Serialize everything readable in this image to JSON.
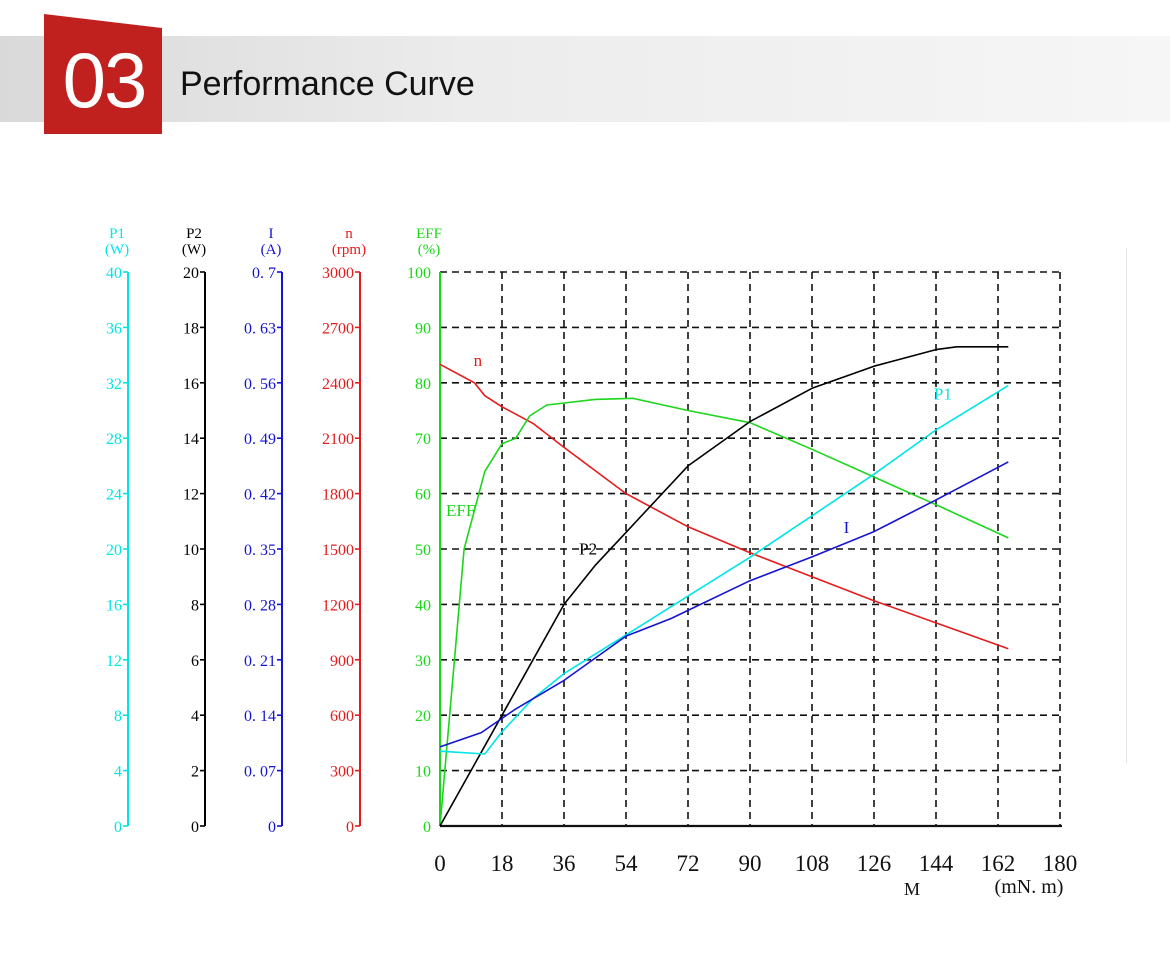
{
  "header": {
    "number": "03",
    "title": "Performance Curve",
    "accent_color": "#c0201e"
  },
  "chart_data": {
    "type": "line",
    "x": {
      "label": "M",
      "unit": "(mN. m)",
      "ticks": [
        "0",
        "18",
        "36",
        "54",
        "72",
        "90",
        "108",
        "126",
        "144",
        "162",
        "180"
      ],
      "range": [
        0,
        180
      ]
    },
    "y_axes": [
      {
        "id": "P1",
        "label": "P1",
        "unit": "(W)",
        "color": "#00e5e5",
        "range": [
          0,
          40
        ],
        "ticks": [
          "0",
          "4",
          "8",
          "12",
          "16",
          "20",
          "24",
          "28",
          "32",
          "36",
          "40"
        ]
      },
      {
        "id": "P2",
        "label": "P2",
        "unit": "(W)",
        "color": "#000000",
        "range": [
          0,
          20
        ],
        "ticks": [
          "0",
          "2",
          "4",
          "6",
          "8",
          "10",
          "12",
          "14",
          "16",
          "18",
          "20"
        ]
      },
      {
        "id": "I",
        "label": "I",
        "unit": "(A)",
        "color": "#1414d2",
        "range": [
          0,
          0.7
        ],
        "ticks": [
          "0",
          "0. 07",
          "0. 14",
          "0. 21",
          "0. 28",
          "0. 35",
          "0. 42",
          "0. 49",
          "0. 56",
          "0. 63",
          "0. 7"
        ]
      },
      {
        "id": "n",
        "label": "n",
        "unit": "(rpm)",
        "color": "#e51c1c",
        "range": [
          0,
          3000
        ],
        "ticks": [
          "0",
          "300",
          "600",
          "900",
          "1200",
          "1500",
          "1800",
          "2100",
          "2400",
          "2700",
          "3000"
        ]
      },
      {
        "id": "EFF",
        "label": "EFF",
        "unit": "(%)",
        "color": "#1cd61c",
        "range": [
          0,
          100
        ],
        "ticks": [
          "0",
          "10",
          "20",
          "30",
          "40",
          "50",
          "60",
          "70",
          "80",
          "90",
          "100"
        ]
      }
    ],
    "grid": true,
    "series": [
      {
        "name": "n",
        "axis": "n",
        "color": "#e51c1c",
        "label_at": [
          11,
          2490
        ],
        "points": [
          [
            0,
            2500
          ],
          [
            10,
            2400
          ],
          [
            13,
            2330
          ],
          [
            18,
            2270
          ],
          [
            27,
            2180
          ],
          [
            36,
            2050
          ],
          [
            54,
            1800
          ],
          [
            72,
            1620
          ],
          [
            90,
            1480
          ],
          [
            108,
            1350
          ],
          [
            126,
            1220
          ],
          [
            144,
            1100
          ],
          [
            165,
            960
          ]
        ]
      },
      {
        "name": "EFF",
        "axis": "EFF",
        "color": "#1cd61c",
        "label_at": [
          6,
          56
        ],
        "points": [
          [
            0,
            0
          ],
          [
            7,
            50
          ],
          [
            13,
            64
          ],
          [
            18,
            69
          ],
          [
            22,
            70
          ],
          [
            26,
            74
          ],
          [
            31,
            76
          ],
          [
            45,
            77
          ],
          [
            56,
            77.2
          ],
          [
            72,
            75
          ],
          [
            90,
            72.8
          ],
          [
            108,
            68
          ],
          [
            126,
            63
          ],
          [
            144,
            58
          ],
          [
            165,
            52
          ]
        ]
      },
      {
        "name": "P2",
        "axis": "P2",
        "color": "#000000",
        "label_at": [
          43,
          9.8
        ],
        "points": [
          [
            0,
            0
          ],
          [
            18,
            4
          ],
          [
            27,
            6
          ],
          [
            36,
            8
          ],
          [
            45,
            9.4
          ],
          [
            54,
            10.6
          ],
          [
            72,
            13
          ],
          [
            90,
            14.6
          ],
          [
            108,
            15.8
          ],
          [
            126,
            16.6
          ],
          [
            144,
            17.2
          ],
          [
            150,
            17.3
          ],
          [
            165,
            17.3
          ]
        ]
      },
      {
        "name": "P1",
        "axis": "P1",
        "color": "#00e5e5",
        "label_at": [
          146,
          30.8
        ],
        "points": [
          [
            0,
            5.4
          ],
          [
            13,
            5.2
          ],
          [
            18,
            6.8
          ],
          [
            27,
            9.2
          ],
          [
            36,
            11
          ],
          [
            54,
            13.8
          ],
          [
            72,
            16.6
          ],
          [
            90,
            19.4
          ],
          [
            108,
            22.4
          ],
          [
            126,
            25.4
          ],
          [
            144,
            28.6
          ],
          [
            165,
            31.8
          ]
        ]
      },
      {
        "name": "I",
        "axis": "I",
        "color": "#1414d2",
        "label_at": [
          118,
          0.37
        ],
        "points": [
          [
            0,
            0.1
          ],
          [
            12,
            0.118
          ],
          [
            22,
            0.148
          ],
          [
            36,
            0.184
          ],
          [
            54,
            0.24
          ],
          [
            67,
            0.262
          ],
          [
            90,
            0.31
          ],
          [
            108,
            0.34
          ],
          [
            126,
            0.372
          ],
          [
            144,
            0.412
          ],
          [
            165,
            0.46
          ]
        ]
      }
    ]
  }
}
